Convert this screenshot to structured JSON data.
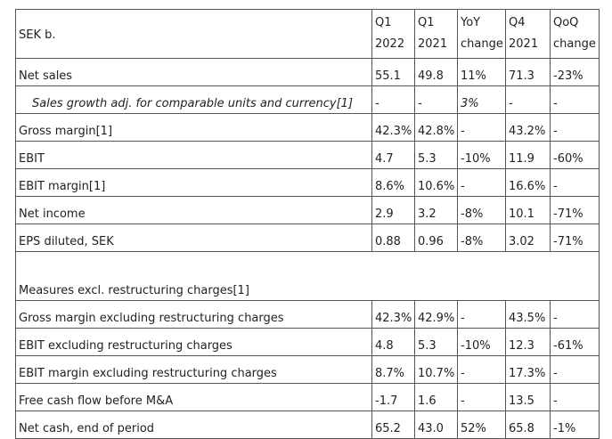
{
  "table": {
    "header": [
      [
        "SEK b."
      ],
      [
        "Q1",
        "2022"
      ],
      [
        "Q1",
        "2021"
      ],
      [
        "YoY",
        "change"
      ],
      [
        "Q4",
        "2021"
      ],
      [
        "QoQ",
        "change"
      ]
    ],
    "rows": [
      [
        "Net sales",
        "55.1",
        "49.8",
        "11%",
        "71.3",
        "-23%"
      ],
      [
        "Sales growth adj. for comparable units and currency[1]",
        "-",
        "-",
        "3%",
        "-",
        "-"
      ],
      [
        "Gross margin[1]",
        "42.3%",
        "42.8%",
        "-",
        "43.2%",
        "-"
      ],
      [
        "EBIT",
        "4.7",
        "5.3",
        "-10%",
        "11.9",
        "-60%"
      ],
      [
        "EBIT margin[1]",
        "8.6%",
        "10.6%",
        "-",
        "16.6%",
        "-"
      ],
      [
        "Net income",
        "2.9",
        "3.2",
        "-8%",
        "10.1",
        "-71%"
      ],
      [
        "EPS diluted, SEK",
        "0.88",
        "0.96",
        "-8%",
        "3.02",
        "-71%"
      ],
      [
        "Measures excl. restructuring charges[1]"
      ],
      [
        "Gross margin excluding restructuring charges",
        "42.3%",
        "42.9%",
        "-",
        "43.5%",
        "-"
      ],
      [
        "EBIT excluding restructuring charges",
        "4.8",
        "5.3",
        "-10%",
        "12.3",
        "-61%"
      ],
      [
        "EBIT margin excluding restructuring charges",
        "8.7%",
        "10.7%",
        "-",
        "17.3%",
        "-"
      ],
      [
        "Free cash flow before M&A",
        "-1.7",
        "1.6",
        "-",
        "13.5",
        "-"
      ],
      [
        "Net cash, end of period",
        "65.2",
        "43.0",
        "52%",
        "65.8",
        "-1%"
      ]
    ]
  }
}
